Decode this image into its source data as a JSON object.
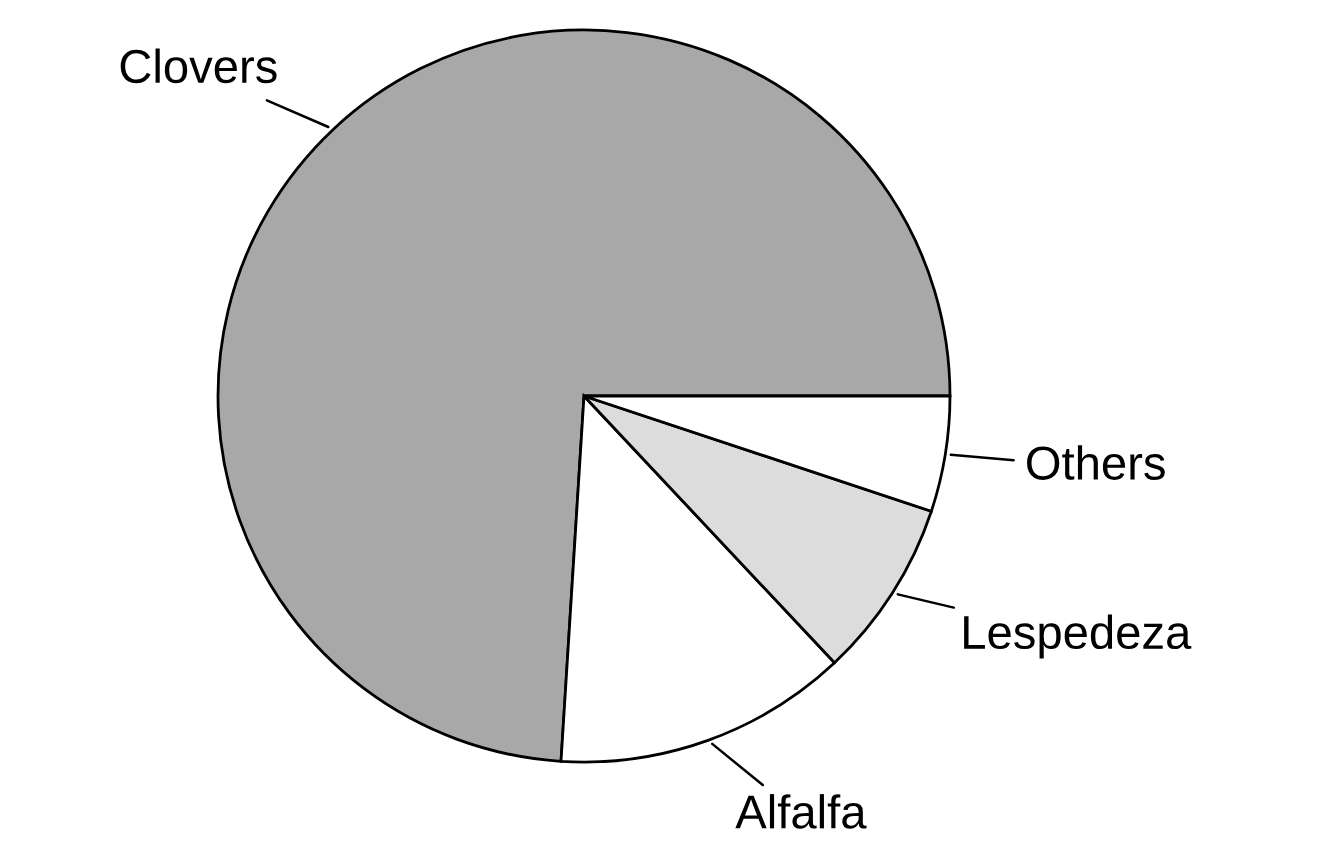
{
  "chart_data": {
    "type": "pie",
    "categories": [
      "Clovers",
      "Alfalfa",
      "Lespedeza",
      "Others"
    ],
    "values": [
      74.0,
      13.0,
      7.9,
      5.1
    ],
    "colors": [
      "#a8a8a8",
      "#ffffff",
      "#dcdcdc",
      "#ffffff"
    ]
  }
}
